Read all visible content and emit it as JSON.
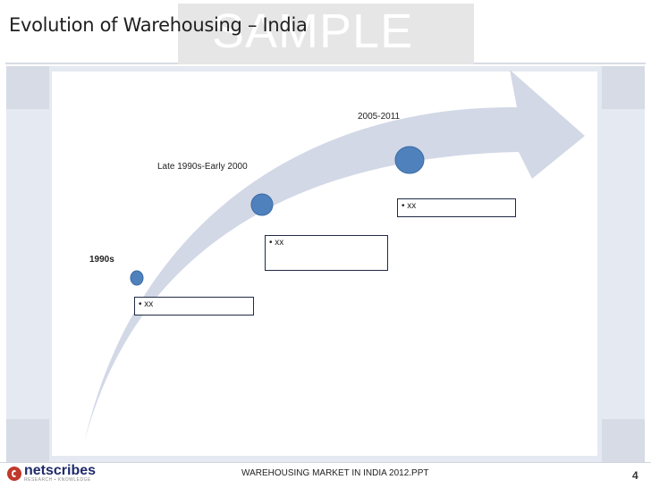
{
  "slide": {
    "title": "Evolution of Warehousing – India",
    "watermark": "SAMPLE",
    "footer": "WAREHOUSING MARKET IN INDIA 2012.PPT",
    "page_number": "4",
    "logo_text": "netscribes",
    "logo_tagline": "RESEARCH ▪ KNOWLEDGE"
  },
  "timeline": {
    "stages": [
      {
        "label": "1990s",
        "bullet": "• xx"
      },
      {
        "label": "Late 1990s-Early 2000",
        "bullet": "• xx"
      },
      {
        "label": "2005-2011",
        "bullet": "• xx"
      }
    ]
  },
  "colors": {
    "arrow_fill": "#d2d8e6",
    "dot_fill": "#4f81bd",
    "dot_stroke": "#3a6aa3",
    "frame_bg": "#e5e9f1",
    "box_border": "#1f2a44"
  }
}
